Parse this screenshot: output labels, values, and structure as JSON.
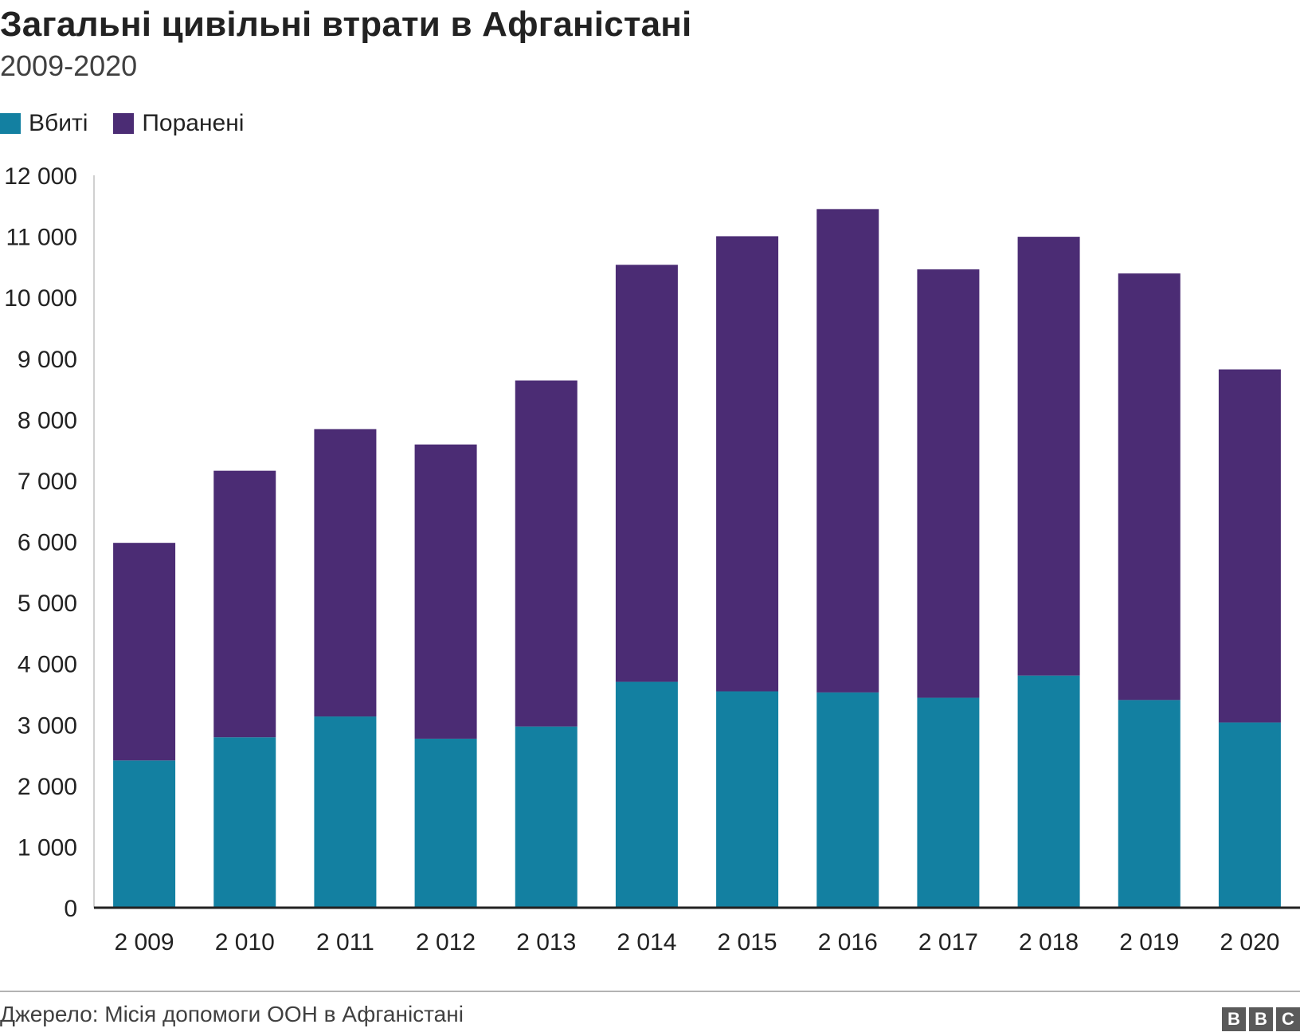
{
  "header": {
    "title": "Загальні цивільні втрати в Афганістані",
    "subtitle": "2009-2020"
  },
  "legend": {
    "items": [
      {
        "label": "Вбиті",
        "color": "#1380a1"
      },
      {
        "label": "Поранені",
        "color": "#4b2c74"
      }
    ]
  },
  "footer": {
    "source": "Джерело: Місія допомоги ООН в Афганістані",
    "logo_letters": [
      "B",
      "B",
      "C"
    ]
  },
  "chart_data": {
    "type": "bar",
    "stacked": true,
    "categories": [
      "2 009",
      "2 010",
      "2 011",
      "2 012",
      "2 013",
      "2 014",
      "2 015",
      "2 016",
      "2 017",
      "2 018",
      "2 019",
      "2 020"
    ],
    "series": [
      {
        "name": "Вбиті",
        "color": "#1380a1",
        "values": [
          2412,
          2792,
          3133,
          2769,
          2969,
          3701,
          3545,
          3527,
          3440,
          3804,
          3403,
          3035
        ]
      },
      {
        "name": "Поранені",
        "color": "#4b2c74",
        "values": [
          3566,
          4368,
          4709,
          4821,
          5669,
          6833,
          7457,
          7920,
          7019,
          7189,
          6989,
          5785
        ]
      }
    ],
    "ylim": [
      0,
      12000
    ],
    "yticks": [
      0,
      1000,
      2000,
      3000,
      4000,
      5000,
      6000,
      7000,
      8000,
      9000,
      10000,
      11000,
      12000
    ],
    "ytick_labels": [
      "0",
      "1 000",
      "2 000",
      "3 000",
      "4 000",
      "5 000",
      "6 000",
      "7 000",
      "8 000",
      "9 000",
      "10 000",
      "11 000",
      "12 000"
    ],
    "grid": false,
    "legend_position": "top-left"
  }
}
